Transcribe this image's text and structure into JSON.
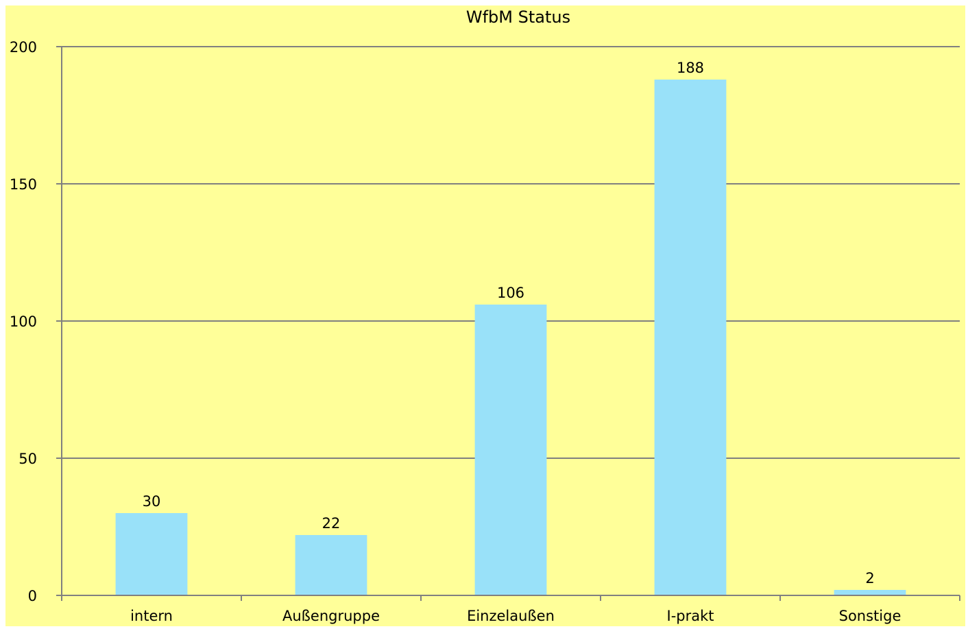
{
  "chart_data": {
    "type": "bar",
    "title": "WfbM Status",
    "xlabel": "",
    "ylabel": "",
    "categories": [
      "intern",
      "Außengruppe",
      "Einzelaußen",
      "I-prakt",
      "Sonstige"
    ],
    "values": [
      30,
      22,
      106,
      188,
      2
    ],
    "data_labels": [
      "30",
      "22",
      "106",
      "188",
      "2"
    ],
    "ylim": [
      0,
      200
    ],
    "yticks": [
      0,
      50,
      100,
      150,
      200
    ],
    "ytick_labels": [
      "0",
      "50",
      "100",
      "150",
      "200"
    ],
    "grid": true,
    "legend": "none",
    "colors": {
      "background": "#FFFF99",
      "bar": "#99E1F9",
      "axis": "#808080",
      "grid": "#808080",
      "text": "#000000"
    }
  }
}
